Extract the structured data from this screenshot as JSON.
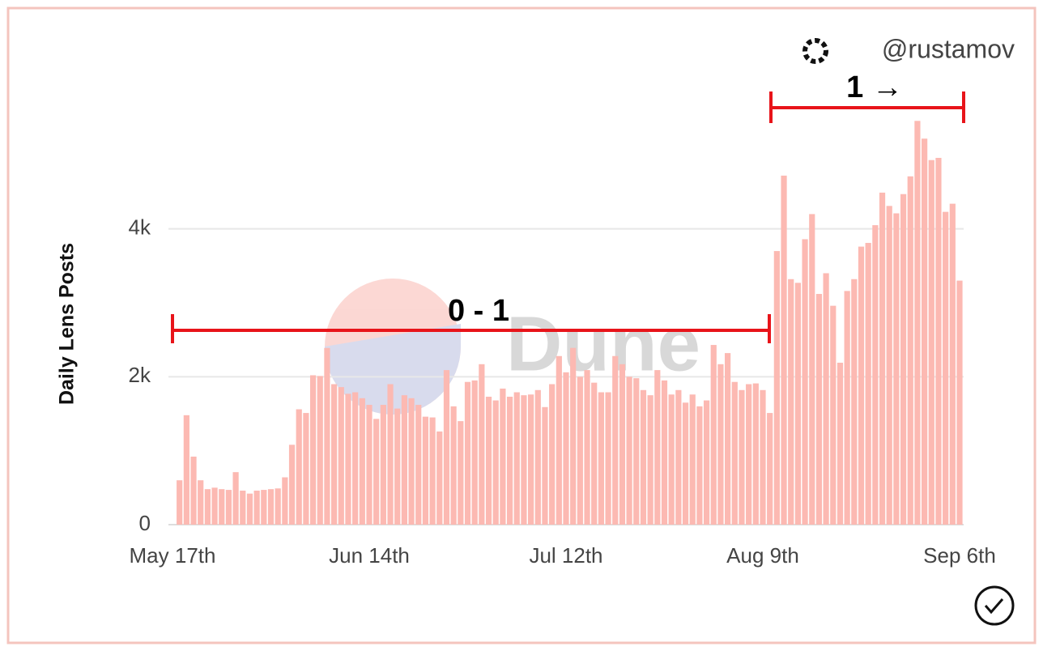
{
  "chart_data": {
    "type": "bar",
    "y_label": "Daily Lens Posts",
    "watermark": "Dune",
    "credit": "@rustamov",
    "annotations": [
      "0 - 1",
      "1 →"
    ],
    "color": "#fcb9b2",
    "grid": true,
    "ylim": [
      0,
      6000
    ],
    "yticks": [
      0,
      {
        "value": 2000,
        "label": "2k"
      },
      {
        "value": 4000,
        "label": "4k"
      }
    ],
    "categories": [
      "May 17th",
      null,
      null,
      null,
      null,
      null,
      null,
      null,
      null,
      null,
      null,
      null,
      null,
      null,
      null,
      null,
      null,
      null,
      null,
      null,
      null,
      null,
      null,
      null,
      null,
      null,
      null,
      null,
      "Jun 14th",
      null,
      null,
      null,
      null,
      null,
      null,
      null,
      null,
      null,
      null,
      null,
      null,
      null,
      null,
      null,
      null,
      null,
      null,
      null,
      null,
      null,
      null,
      null,
      null,
      null,
      null,
      null,
      "Jul 12th",
      null,
      null,
      null,
      null,
      null,
      null,
      null,
      null,
      null,
      null,
      null,
      null,
      null,
      null,
      null,
      null,
      null,
      null,
      null,
      null,
      null,
      null,
      null,
      null,
      null,
      null,
      null,
      "Aug 9th",
      null,
      null,
      null,
      null,
      null,
      null,
      null,
      null,
      null,
      null,
      null,
      null,
      null,
      null,
      null,
      null,
      null,
      null,
      null,
      null,
      null,
      null,
      null,
      null,
      null,
      null,
      null,
      "Sep 6th"
    ],
    "values": [
      null,
      600,
      1480,
      920,
      600,
      480,
      500,
      480,
      470,
      710,
      460,
      420,
      460,
      470,
      480,
      490,
      640,
      1080,
      1560,
      1510,
      2020,
      2010,
      2390,
      1900,
      1860,
      1770,
      1790,
      1710,
      1620,
      1430,
      1620,
      1900,
      1570,
      1750,
      1710,
      1620,
      1460,
      1450,
      1260,
      2090,
      1600,
      1400,
      1930,
      1950,
      2170,
      1730,
      1680,
      1840,
      1730,
      1790,
      1750,
      1760,
      1820,
      1590,
      1900,
      2280,
      2060,
      2390,
      2000,
      2090,
      1920,
      1790,
      1790,
      2280,
      2170,
      2000,
      1980,
      1820,
      1750,
      2090,
      1950,
      1760,
      1820,
      1650,
      1760,
      1600,
      1680,
      2430,
      2170,
      2320,
      1930,
      1820,
      1900,
      1910,
      1820,
      1510,
      3700,
      4720,
      3320,
      3270,
      3860,
      4200,
      3120,
      3400,
      2960,
      2190,
      3160,
      3320,
      3760,
      3810,
      4050,
      4490,
      4310,
      4210,
      4470,
      4710,
      5460,
      5220,
      4930,
      4960,
      4230,
      4340,
      3300
    ]
  }
}
